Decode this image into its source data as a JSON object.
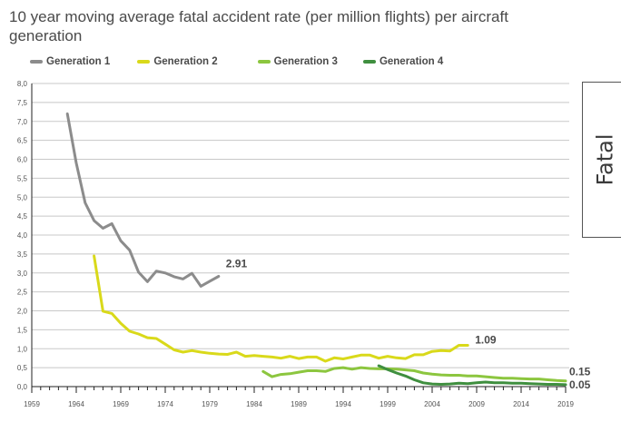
{
  "chart_data": {
    "type": "line",
    "title": "10 year moving average fatal accident rate (per million flights) per aircraft generation",
    "xlabel": "",
    "ylabel": "",
    "side_label": "Fatal",
    "ylim": [
      0,
      8
    ],
    "xlim": [
      1959,
      2019
    ],
    "yticks": [
      "0,0",
      "0,5",
      "1,0",
      "1,5",
      "2,0",
      "2,5",
      "3,0",
      "3,5",
      "4,0",
      "4,5",
      "5,0",
      "5,5",
      "6,0",
      "6,5",
      "7,0",
      "7,5",
      "8,0"
    ],
    "ytick_values": [
      0,
      0.5,
      1,
      1.5,
      2,
      2.5,
      3,
      3.5,
      4,
      4.5,
      5,
      5.5,
      6,
      6.5,
      7,
      7.5,
      8
    ],
    "xticks": [
      "1959",
      "1964",
      "1969",
      "1974",
      "1979",
      "1984",
      "1989",
      "1994",
      "1999",
      "2004",
      "2009",
      "2014",
      "2019"
    ],
    "xtick_values": [
      1959,
      1964,
      1969,
      1974,
      1979,
      1984,
      1989,
      1994,
      1999,
      2004,
      2009,
      2014,
      2019
    ],
    "grid": true,
    "legend_position": "top",
    "series": [
      {
        "name": "Generation 1",
        "color": "#8c8c8c",
        "end_label": "2.91",
        "x": [
          1963,
          1964,
          1965,
          1966,
          1967,
          1968,
          1969,
          1970,
          1971,
          1972,
          1973,
          1974,
          1975,
          1976,
          1977,
          1978,
          1979,
          1980
        ],
        "values": [
          7.2,
          5.9,
          4.85,
          4.38,
          4.18,
          4.3,
          3.85,
          3.6,
          3.02,
          2.77,
          3.05,
          3.0,
          2.9,
          2.84,
          2.99,
          2.65,
          2.78,
          2.91
        ]
      },
      {
        "name": "Generation 2",
        "color": "#d9d91a",
        "end_label": "1.09",
        "x": [
          1966,
          1967,
          1968,
          1969,
          1970,
          1971,
          1972,
          1973,
          1974,
          1975,
          1976,
          1977,
          1978,
          1979,
          1980,
          1981,
          1982,
          1983,
          1984,
          1985,
          1986,
          1987,
          1988,
          1989,
          1990,
          1991,
          1992,
          1993,
          1994,
          1995,
          1996,
          1997,
          1998,
          1999,
          2000,
          2001,
          2002,
          2003,
          2004,
          2005,
          2006,
          2007,
          2008
        ],
        "values": [
          3.45,
          1.99,
          1.93,
          1.67,
          1.46,
          1.39,
          1.29,
          1.27,
          1.12,
          0.97,
          0.91,
          0.95,
          0.91,
          0.88,
          0.86,
          0.85,
          0.91,
          0.8,
          0.82,
          0.8,
          0.78,
          0.75,
          0.8,
          0.74,
          0.78,
          0.78,
          0.67,
          0.76,
          0.73,
          0.78,
          0.83,
          0.83,
          0.75,
          0.8,
          0.76,
          0.74,
          0.84,
          0.84,
          0.93,
          0.95,
          0.94,
          1.09,
          1.09
        ]
      },
      {
        "name": "Generation 3",
        "color": "#8cc63f",
        "end_label": "0.15",
        "x": [
          1985,
          1986,
          1987,
          1988,
          1989,
          1990,
          1991,
          1992,
          1993,
          1994,
          1995,
          1996,
          1997,
          1998,
          1999,
          2000,
          2001,
          2002,
          2003,
          2004,
          2005,
          2006,
          2007,
          2008,
          2009,
          2010,
          2011,
          2012,
          2013,
          2014,
          2015,
          2016,
          2017,
          2018,
          2019
        ],
        "values": [
          0.4,
          0.26,
          0.32,
          0.34,
          0.38,
          0.42,
          0.42,
          0.4,
          0.48,
          0.5,
          0.46,
          0.5,
          0.48,
          0.47,
          0.47,
          0.46,
          0.44,
          0.42,
          0.36,
          0.33,
          0.31,
          0.3,
          0.3,
          0.28,
          0.28,
          0.26,
          0.24,
          0.22,
          0.22,
          0.21,
          0.2,
          0.2,
          0.18,
          0.16,
          0.15
        ]
      },
      {
        "name": "Generation 4",
        "color": "#3f8f3f",
        "end_label": "0.05",
        "x": [
          1998,
          1999,
          2000,
          2001,
          2002,
          2003,
          2004,
          2005,
          2006,
          2007,
          2008,
          2009,
          2010,
          2011,
          2012,
          2013,
          2014,
          2015,
          2016,
          2017,
          2018,
          2019
        ],
        "values": [
          0.55,
          0.45,
          0.36,
          0.28,
          0.18,
          0.1,
          0.07,
          0.06,
          0.07,
          0.09,
          0.08,
          0.1,
          0.12,
          0.1,
          0.1,
          0.09,
          0.09,
          0.08,
          0.07,
          0.06,
          0.06,
          0.05
        ]
      }
    ]
  }
}
